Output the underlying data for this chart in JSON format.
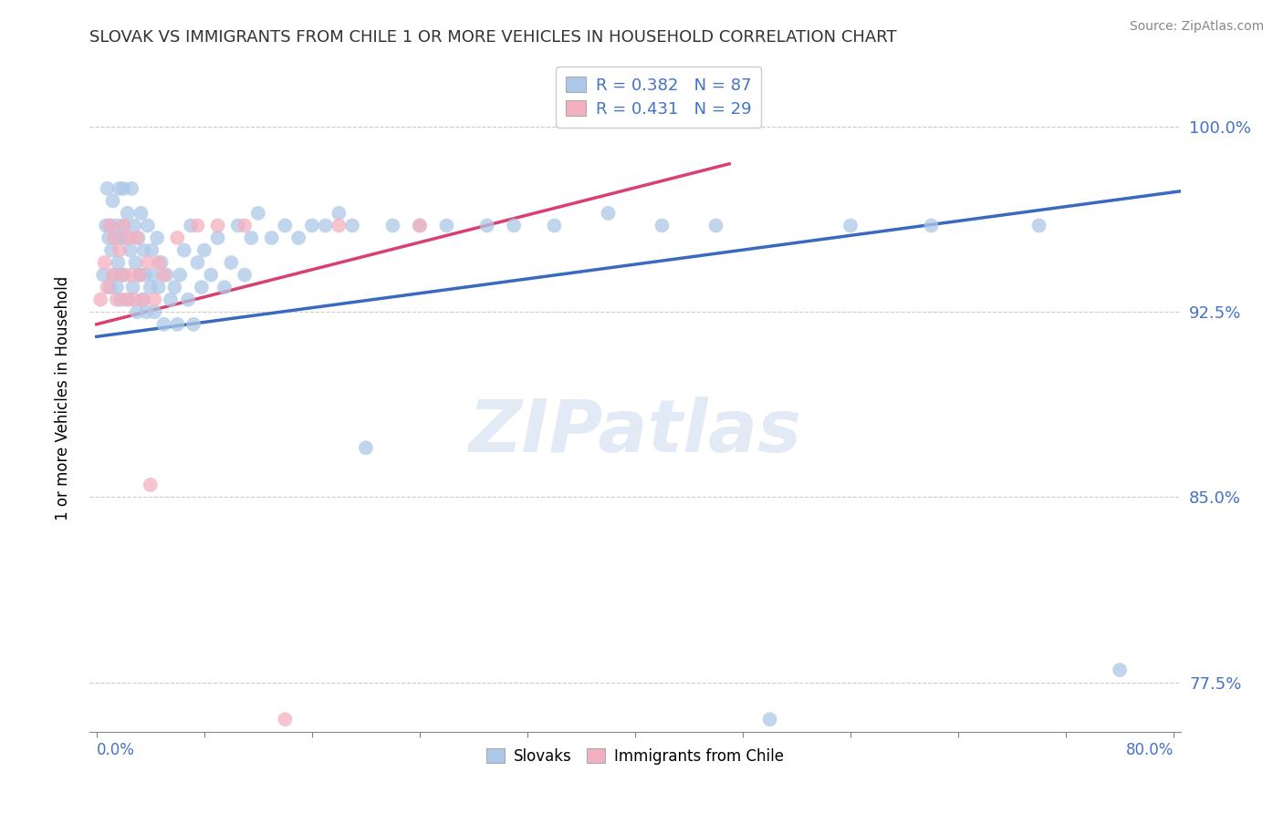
{
  "title": "SLOVAK VS IMMIGRANTS FROM CHILE 1 OR MORE VEHICLES IN HOUSEHOLD CORRELATION CHART",
  "source": "Source: ZipAtlas.com",
  "ylabel": "1 or more Vehicles in Household",
  "yticks": [
    "77.5%",
    "85.0%",
    "92.5%",
    "100.0%"
  ],
  "ytick_vals": [
    0.775,
    0.85,
    0.925,
    1.0
  ],
  "xmin": 0.0,
  "xmax": 0.8,
  "ymin": 0.755,
  "ymax": 1.025,
  "legend_blue_label": "R = 0.382   N = 87",
  "legend_pink_label": "R = 0.431   N = 29",
  "blue_color": "#adc8e8",
  "blue_line_color": "#3a6abf",
  "pink_color": "#f4b0c0",
  "pink_line_color": "#d94070",
  "blue_R": 0.382,
  "blue_N": 87,
  "pink_R": 0.431,
  "pink_N": 29,
  "blue_scatter_x": [
    0.005,
    0.007,
    0.008,
    0.009,
    0.01,
    0.01,
    0.011,
    0.012,
    0.013,
    0.014,
    0.015,
    0.015,
    0.016,
    0.017,
    0.018,
    0.018,
    0.019,
    0.02,
    0.02,
    0.021,
    0.022,
    0.023,
    0.024,
    0.025,
    0.026,
    0.027,
    0.028,
    0.029,
    0.03,
    0.031,
    0.032,
    0.033,
    0.034,
    0.035,
    0.036,
    0.037,
    0.038,
    0.04,
    0.041,
    0.042,
    0.043,
    0.045,
    0.046,
    0.048,
    0.05,
    0.052,
    0.055,
    0.058,
    0.06,
    0.062,
    0.065,
    0.068,
    0.07,
    0.072,
    0.075,
    0.078,
    0.08,
    0.085,
    0.09,
    0.095,
    0.1,
    0.105,
    0.11,
    0.115,
    0.12,
    0.13,
    0.14,
    0.15,
    0.16,
    0.17,
    0.18,
    0.19,
    0.2,
    0.22,
    0.24,
    0.26,
    0.29,
    0.31,
    0.34,
    0.38,
    0.42,
    0.46,
    0.5,
    0.56,
    0.62,
    0.7,
    0.76
  ],
  "blue_scatter_y": [
    0.94,
    0.96,
    0.975,
    0.955,
    0.935,
    0.96,
    0.95,
    0.97,
    0.94,
    0.955,
    0.935,
    0.96,
    0.945,
    0.975,
    0.93,
    0.955,
    0.94,
    0.96,
    0.975,
    0.94,
    0.955,
    0.965,
    0.93,
    0.95,
    0.975,
    0.935,
    0.96,
    0.945,
    0.925,
    0.955,
    0.94,
    0.965,
    0.93,
    0.95,
    0.94,
    0.925,
    0.96,
    0.935,
    0.95,
    0.94,
    0.925,
    0.955,
    0.935,
    0.945,
    0.92,
    0.94,
    0.93,
    0.935,
    0.92,
    0.94,
    0.95,
    0.93,
    0.96,
    0.92,
    0.945,
    0.935,
    0.95,
    0.94,
    0.955,
    0.935,
    0.945,
    0.96,
    0.94,
    0.955,
    0.965,
    0.955,
    0.96,
    0.955,
    0.96,
    0.96,
    0.965,
    0.96,
    0.87,
    0.96,
    0.96,
    0.96,
    0.96,
    0.96,
    0.96,
    0.965,
    0.96,
    0.96,
    0.76,
    0.96,
    0.96,
    0.96,
    0.78
  ],
  "pink_scatter_x": [
    0.003,
    0.006,
    0.008,
    0.01,
    0.012,
    0.013,
    0.015,
    0.017,
    0.019,
    0.02,
    0.022,
    0.024,
    0.026,
    0.028,
    0.03,
    0.032,
    0.035,
    0.038,
    0.04,
    0.043,
    0.046,
    0.05,
    0.06,
    0.075,
    0.09,
    0.11,
    0.14,
    0.18,
    0.24
  ],
  "pink_scatter_y": [
    0.93,
    0.945,
    0.935,
    0.96,
    0.94,
    0.955,
    0.93,
    0.95,
    0.94,
    0.96,
    0.93,
    0.955,
    0.94,
    0.93,
    0.955,
    0.94,
    0.93,
    0.945,
    0.855,
    0.93,
    0.945,
    0.94,
    0.955,
    0.96,
    0.96,
    0.96,
    0.76,
    0.96,
    0.96
  ]
}
